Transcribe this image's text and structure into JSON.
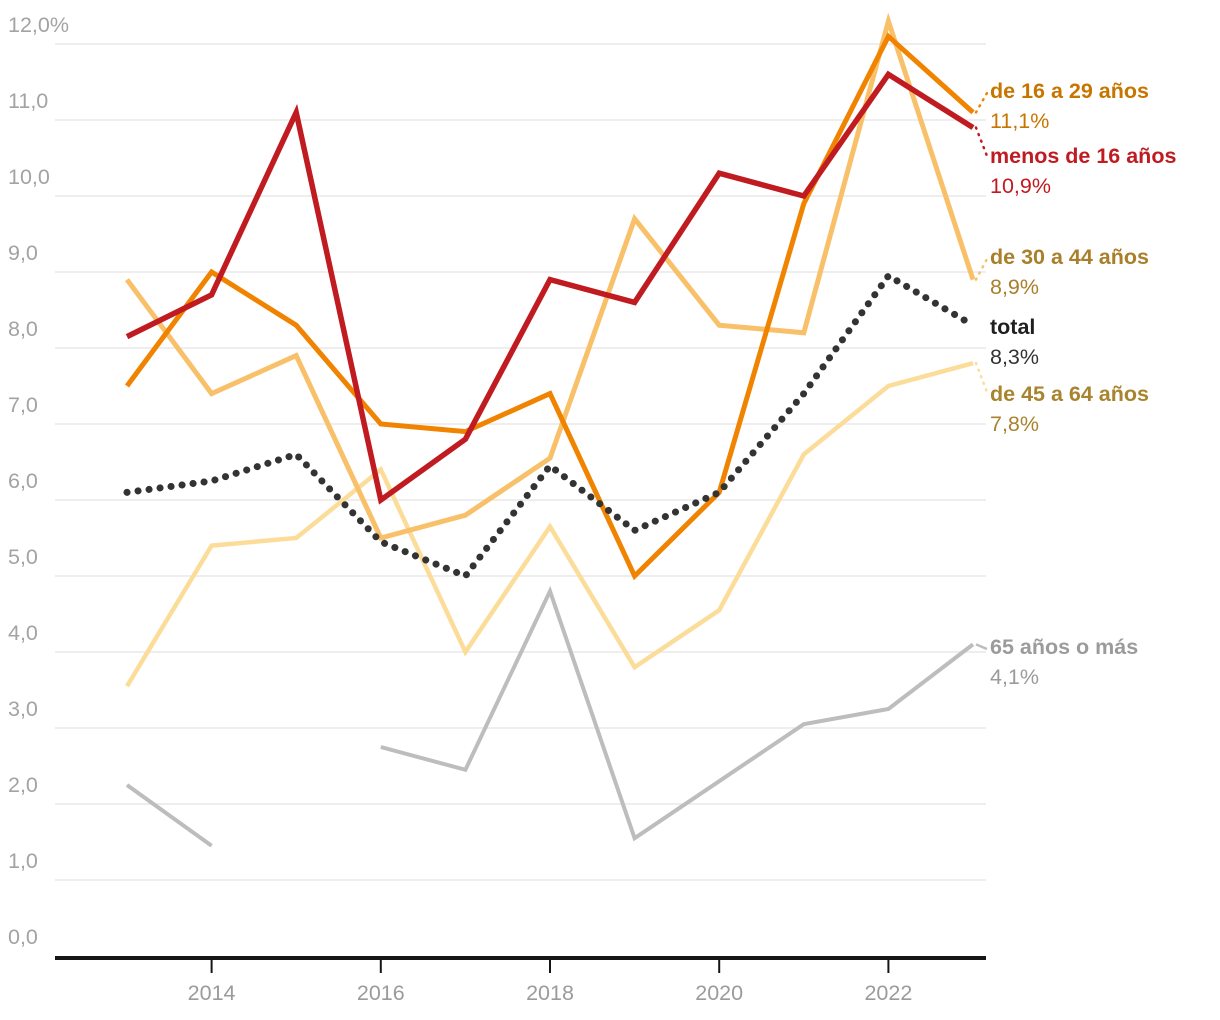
{
  "chart_data": {
    "type": "line",
    "title": "",
    "x": [
      2013,
      2014,
      2015,
      2016,
      2017,
      2018,
      2019,
      2020,
      2021,
      2022,
      2023
    ],
    "x_tick_labels": [
      "2014",
      "2016",
      "2018",
      "2020",
      "2022"
    ],
    "y_axis": {
      "min": 0,
      "max": 12,
      "tick_step": 1,
      "tick_labels_top_to_bottom": [
        "12,0%",
        "11,0",
        "10,0",
        "9,0",
        "8,0",
        "7,0",
        "6,0",
        "5,0",
        "4,0",
        "3,0",
        "2,0",
        "1,0",
        "0,0"
      ],
      "grid": true
    },
    "unit": "%",
    "legend_position": "right-end-labels",
    "series": [
      {
        "id": "de-16-a-29",
        "name": "de 16 a 29 años",
        "end_value_label": "11,1%",
        "line_color": "#f08300",
        "label_color": "#c87500",
        "line_style": "solid",
        "values": [
          7.5,
          9.0,
          8.3,
          7.0,
          6.9,
          7.4,
          5.0,
          6.1,
          9.9,
          12.1,
          11.1
        ]
      },
      {
        "id": "menos-de-16",
        "name": "menos de 16 años",
        "end_value_label": "10,9%",
        "line_color": "#c01b20",
        "label_color": "#c01b20",
        "line_style": "solid",
        "values": [
          8.15,
          8.7,
          11.1,
          6.0,
          6.8,
          8.9,
          8.6,
          10.3,
          10.0,
          11.6,
          10.9
        ]
      },
      {
        "id": "de-30-a-44",
        "name": "de 30 a 44 años",
        "end_value_label": "8,9%",
        "line_color": "#f9c06a",
        "label_color": "#a97f2a",
        "line_style": "solid",
        "values": [
          8.9,
          7.4,
          7.9,
          5.5,
          5.8,
          6.55,
          9.7,
          8.3,
          8.2,
          12.3,
          8.9
        ]
      },
      {
        "id": "total",
        "name": "total",
        "end_value_label": "8,3%",
        "line_color": "#333333",
        "label_color": "#1f1f1f",
        "line_style": "dotted",
        "values": [
          6.1,
          6.25,
          6.6,
          5.45,
          5.0,
          6.45,
          5.6,
          6.1,
          7.4,
          8.95,
          8.3
        ]
      },
      {
        "id": "de-45-a-64",
        "name": "de 45 a 64 años",
        "end_value_label": "7,8%",
        "line_color": "#fcdc99",
        "label_color": "#a9842e",
        "line_style": "solid",
        "values": [
          3.55,
          5.4,
          5.5,
          6.4,
          4.0,
          5.65,
          3.8,
          4.55,
          6.6,
          7.5,
          7.8
        ]
      },
      {
        "id": "65-o-mas",
        "name": "65 años o más",
        "end_value_label": "4,1%",
        "line_color": "#bdbdbd",
        "label_color": "#9b9b9b",
        "line_style": "solid",
        "values": [
          2.25,
          1.45,
          null,
          2.75,
          2.45,
          4.8,
          1.55,
          2.3,
          3.05,
          3.25,
          4.1
        ]
      }
    ],
    "colors": {
      "background": "#ffffff",
      "gridline": "#e9e9e9",
      "axis_line": "#161616",
      "axis_text": "#a3a3a3"
    }
  }
}
